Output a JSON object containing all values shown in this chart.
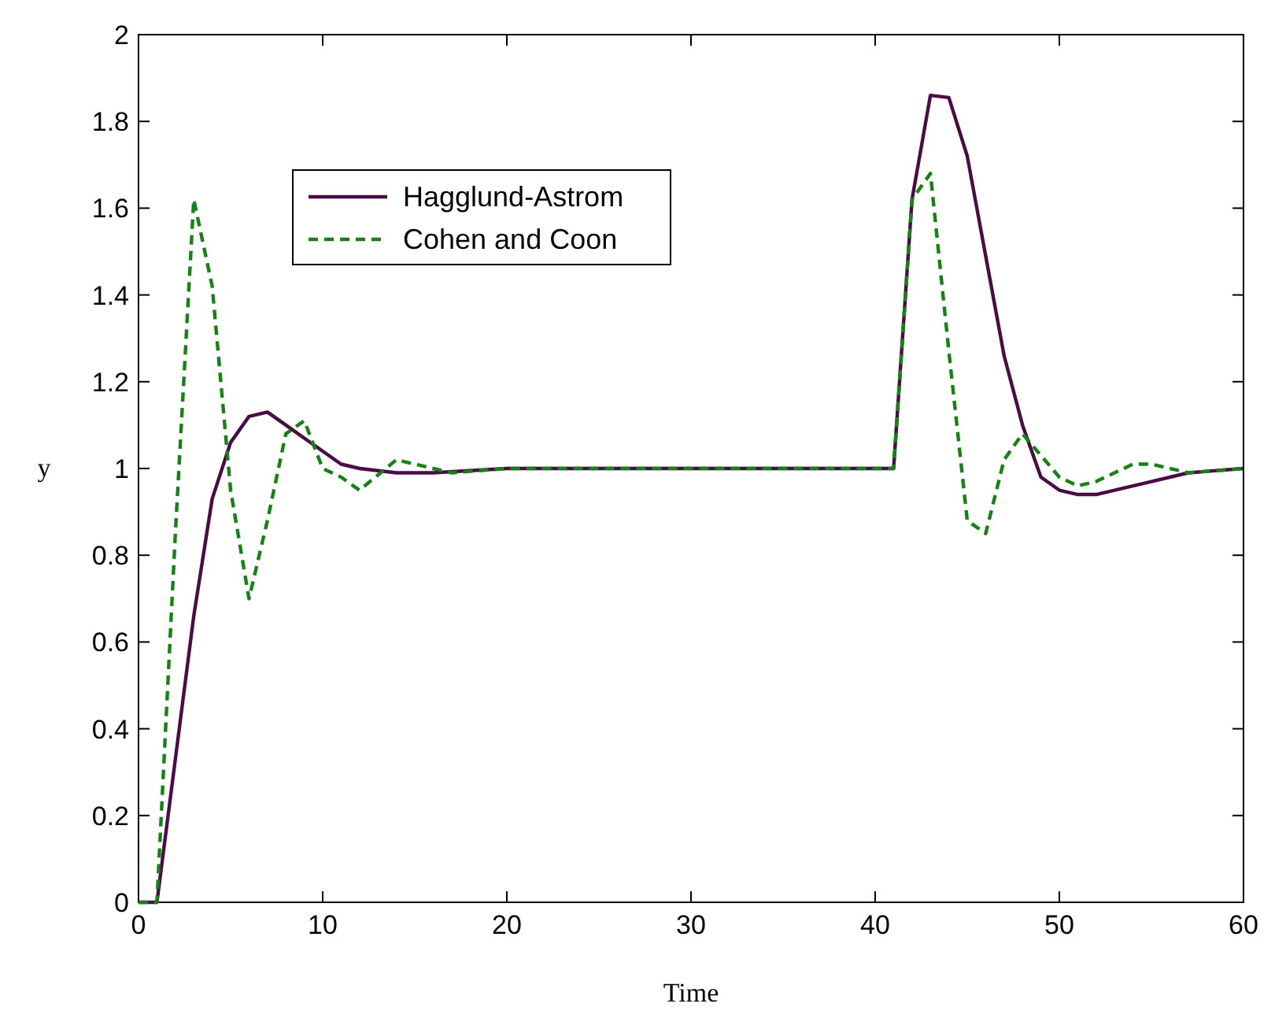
{
  "chart_data": {
    "type": "line",
    "xlabel": "Time",
    "ylabel": "y",
    "xlim": [
      0,
      60
    ],
    "ylim": [
      0,
      2
    ],
    "xticks": [
      0,
      10,
      20,
      30,
      40,
      50,
      60
    ],
    "yticks": [
      0,
      0.2,
      0.4,
      0.6,
      0.8,
      1,
      1.2,
      1.4,
      1.6,
      1.8,
      2
    ],
    "legend": "top left",
    "grid": false,
    "series": [
      {
        "name": "Hagglund-Astrom",
        "color": "#4b0b45",
        "line_style": "solid",
        "x": [
          0,
          1,
          2,
          3,
          4,
          5,
          6,
          7,
          8,
          9,
          10,
          11,
          12,
          14,
          16,
          20,
          30,
          41,
          42,
          43,
          44,
          45,
          46,
          47,
          48,
          49,
          50,
          51,
          52,
          53,
          55,
          57,
          60
        ],
        "values": [
          0,
          0,
          0.33,
          0.66,
          0.93,
          1.06,
          1.12,
          1.13,
          1.1,
          1.07,
          1.04,
          1.01,
          1,
          0.99,
          0.99,
          1,
          1,
          1,
          1.62,
          1.86,
          1.855,
          1.72,
          1.49,
          1.26,
          1.1,
          0.98,
          0.95,
          0.94,
          0.94,
          0.95,
          0.97,
          0.99,
          1
        ]
      },
      {
        "name": "Cohen and Coon",
        "color": "#148214",
        "line_style": "dashed",
        "x": [
          0,
          1,
          2,
          3,
          4,
          5,
          6,
          7,
          8,
          9,
          10,
          11,
          12,
          14,
          15,
          16,
          17,
          20,
          30,
          41,
          42,
          43,
          44,
          45,
          46,
          47,
          48,
          49,
          50,
          51,
          52,
          54,
          55,
          57,
          60
        ],
        "values": [
          0,
          0,
          0.85,
          1.62,
          1.42,
          0.95,
          0.7,
          0.88,
          1.08,
          1.11,
          1.0,
          0.98,
          0.95,
          1.02,
          1.01,
          1.0,
          0.99,
          1,
          1,
          1,
          1.62,
          1.68,
          1.27,
          0.88,
          0.85,
          1.02,
          1.08,
          1.03,
          0.98,
          0.96,
          0.97,
          1.01,
          1.01,
          0.99,
          1
        ]
      }
    ]
  }
}
